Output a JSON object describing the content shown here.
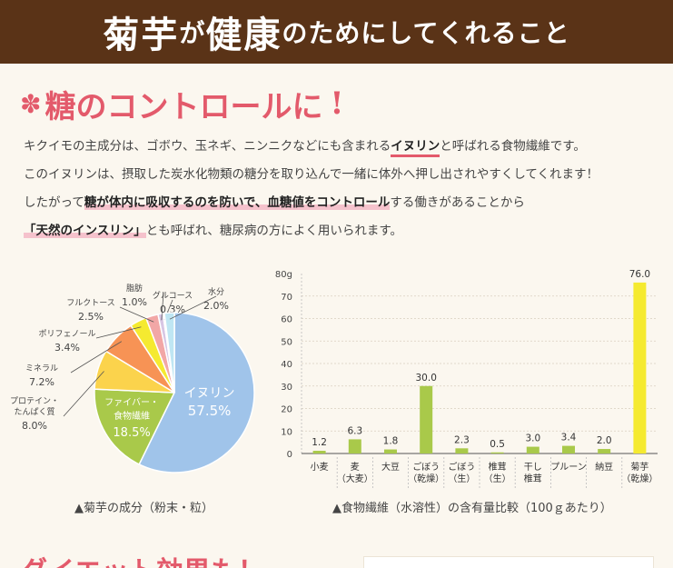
{
  "banner": {
    "word1": "菊芋",
    "particle1": "が",
    "word2": "健康",
    "rest": "のためにしてくれること"
  },
  "section": {
    "title": "糖のコントロールに",
    "exclaim": "!"
  },
  "paragraph": {
    "l1_a": "キクイモの主成分は、ゴボウ、玉ネギ、ニンニクなどにも含まれる",
    "l1_b": "イヌリン",
    "l1_c": "と呼ばれる食物繊維です。",
    "l2": "このイヌリンは、摂取した炭水化物類の糖分を取り込んで一緒に体外へ押し出されやすくしてくれます！",
    "l3_a": "したがって",
    "l3_b": "糖が体内に吸収するのを防いで、血糖値をコントロール",
    "l3_c": "する働きがあることから",
    "l4_a": "「天然のインスリン」",
    "l4_b": "とも呼ばれ、糖尿病の方によく用いられます。"
  },
  "captions": {
    "pie": "▲菊芋の成分（粉末・粒）",
    "bar": "▲食物繊維（水溶性）の含有量比較（100ｇあたり）"
  },
  "bottom": {
    "title": "ダイエット効果も！"
  },
  "chart_data": [
    {
      "type": "pie",
      "slices": [
        {
          "name": "イヌリン",
          "value": 57.5,
          "color": "#a0c4ea",
          "label_value": "57.5%"
        },
        {
          "name": "ファイバー・食物繊維",
          "name_lines": [
            "ファイバー・",
            "食物繊維"
          ],
          "value": 18.5,
          "color": "#a9c94a",
          "label_value": "18.5%"
        },
        {
          "name": "プロテイン・たんぱく質",
          "name_lines": [
            "プロテイン・",
            "たんぱく質"
          ],
          "value": 8.0,
          "color": "#fbd34c",
          "label_value": "8.0%"
        },
        {
          "name": "ミネラル",
          "name_lines": [
            "ミネラル"
          ],
          "value": 7.2,
          "color": "#f79355",
          "label_value": "7.2%"
        },
        {
          "name": "ポリフェノール",
          "name_lines": [
            "ポリフェノール"
          ],
          "value": 3.4,
          "color": "#f5ea30",
          "label_value": "3.4%"
        },
        {
          "name": "フルクトース",
          "name_lines": [
            "フルクトース"
          ],
          "value": 2.5,
          "color": "#f2a7a6",
          "label_value": "2.5%"
        },
        {
          "name": "脂肪",
          "name_lines": [
            "脂肪"
          ],
          "value": 1.0,
          "color": "#d7c6e4",
          "label_value": "1.0%"
        },
        {
          "name": "グルコース",
          "name_lines": [
            "グルコース"
          ],
          "value": 0.3,
          "color": "#f8c9d4",
          "label_value": "0.3%"
        },
        {
          "name": "水分",
          "name_lines": [
            "水分"
          ],
          "value": 2.0,
          "color": "#bfe6f3",
          "label_value": "2.0%"
        }
      ]
    },
    {
      "type": "bar",
      "y_unit_label": "80g",
      "ylim": [
        0,
        80
      ],
      "y_ticks": [
        0,
        10,
        20,
        30,
        40,
        50,
        60,
        70
      ],
      "categories": [
        [
          "小麦"
        ],
        [
          "麦",
          "（大麦）"
        ],
        [
          "大豆"
        ],
        [
          "ごぼう",
          "（乾燥）"
        ],
        [
          "ごぼう",
          "（生）"
        ],
        [
          "椎茸",
          "（生）"
        ],
        [
          "干し",
          "椎茸"
        ],
        [
          "プルーン"
        ],
        [
          "納豆"
        ],
        [
          "菊芋",
          "（乾燥）"
        ]
      ],
      "values": [
        1.2,
        6.3,
        1.8,
        30.0,
        2.3,
        0.5,
        3.0,
        3.4,
        2.0,
        76.0
      ],
      "value_labels": [
        "1.2",
        "6.3",
        "1.8",
        "30.0",
        "2.3",
        "0.5",
        "3.0",
        "3.4",
        "2.0",
        "76.0"
      ],
      "bar_color": "#a9c94a",
      "highlight_color": "#f5ea30",
      "highlight_index": 9
    }
  ]
}
